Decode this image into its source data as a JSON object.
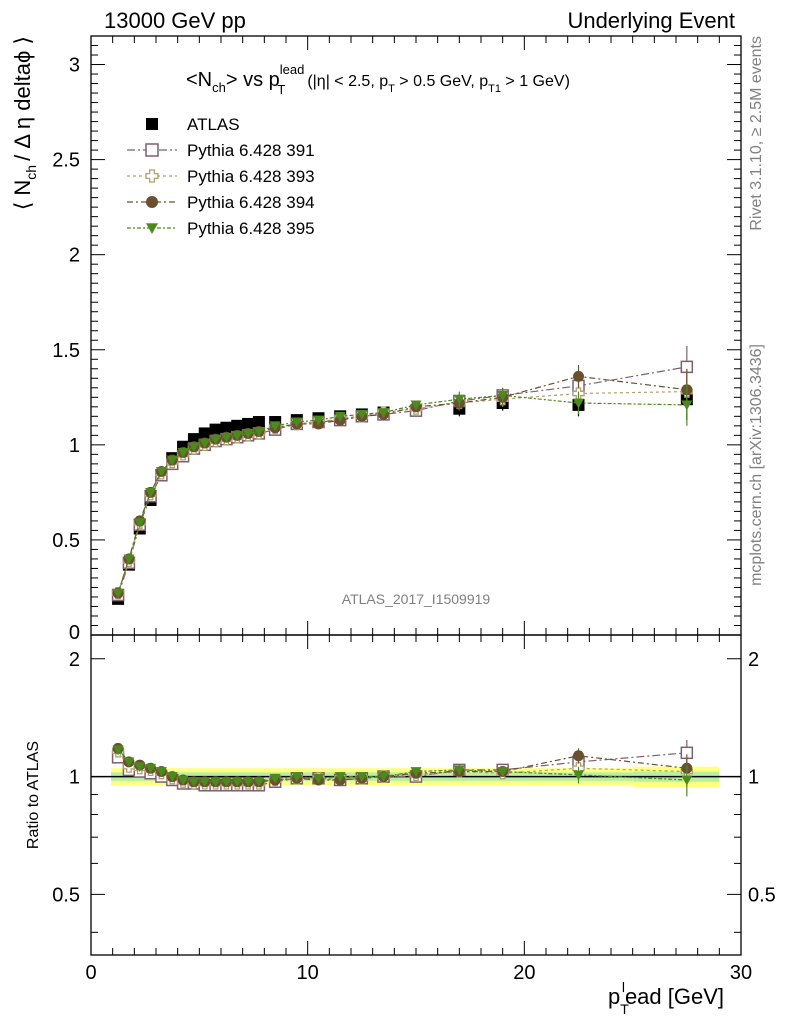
{
  "header": {
    "left": "13000 GeV pp",
    "right": "Underlying Event"
  },
  "side_labels": {
    "rivet": "Rivet 3.1.10, ≥ 2.5M events",
    "mcplots": "mcplots.cern.ch [arXiv:1306.3436]"
  },
  "analysis_id": "ATLAS_2017_I1509919",
  "plot_title": {
    "main_a": "<N",
    "main_sub": "ch",
    "main_b": "> vs p",
    "main_sup": "lead",
    "main_sub2": "T",
    "cuts": "(|η| < 2.5, p",
    "cuts_sub1": "T",
    "cuts_mid": " > 0.5 GeV, p",
    "cuts_sub2": "T1",
    "cuts_end": " > 1 GeV)"
  },
  "axes": {
    "ylabel_main": "⟨ N",
    "ylabel_sub": "ch",
    "ylabel_rest": "/ Δ η deltaϕ ⟩",
    "ylabel_ratio": "Ratio to ATLAS",
    "xlabel_a": "p",
    "xlabel_sub": "T",
    "xlabel_sup": "l",
    "xlabel_b": "ead [GeV]"
  },
  "legend": [
    {
      "label": "ATLAS",
      "marker": "filled-square",
      "color": "#000000"
    },
    {
      "label": "Pythia 6.428 391",
      "marker": "open-square",
      "color": "#7f5f6f"
    },
    {
      "label": "Pythia 6.428 393",
      "marker": "open-cross",
      "color": "#b0a070"
    },
    {
      "label": "Pythia 6.428 394",
      "marker": "filled-circle",
      "color": "#6b5030"
    },
    {
      "label": "Pythia 6.428 395",
      "marker": "filled-triangle-down",
      "color": "#4d8a1e"
    }
  ],
  "chart_data": {
    "type": "scatter",
    "xlim": [
      0,
      30
    ],
    "ylim_main": [
      0,
      3.15
    ],
    "ylim_ratio": [
      0.35,
      2.3
    ],
    "x_ticks": [
      "0",
      "10",
      "20",
      "30"
    ],
    "y_ticks_main": [
      "0.5",
      "1",
      "1.5",
      "2",
      "2.5",
      "3"
    ],
    "y_ticks_ratio": [
      "0.5",
      "1",
      "2"
    ],
    "x": [
      1.25,
      1.75,
      2.25,
      2.75,
      3.25,
      3.75,
      4.25,
      4.75,
      5.25,
      5.75,
      6.25,
      6.75,
      7.25,
      7.75,
      8.5,
      9.5,
      10.5,
      11.5,
      12.5,
      13.5,
      15.0,
      17.0,
      19.0,
      22.5,
      27.5
    ],
    "series": [
      {
        "name": "ATLAS",
        "values": [
          0.19,
          0.37,
          0.56,
          0.71,
          0.84,
          0.93,
          0.99,
          1.03,
          1.06,
          1.08,
          1.09,
          1.1,
          1.11,
          1.12,
          1.12,
          1.13,
          1.14,
          1.15,
          1.16,
          1.17,
          1.18,
          1.19,
          1.22,
          1.21,
          1.24
        ]
      },
      {
        "name": "Pythia 6.428 391",
        "values": [
          0.21,
          0.38,
          0.58,
          0.73,
          0.84,
          0.9,
          0.94,
          0.98,
          1.0,
          1.02,
          1.03,
          1.04,
          1.05,
          1.06,
          1.08,
          1.11,
          1.12,
          1.13,
          1.15,
          1.16,
          1.18,
          1.23,
          1.26,
          1.31,
          1.41
        ]
      },
      {
        "name": "Pythia 6.428 393",
        "values": [
          0.22,
          0.39,
          0.59,
          0.74,
          0.85,
          0.91,
          0.95,
          0.98,
          1.0,
          1.02,
          1.03,
          1.04,
          1.05,
          1.06,
          1.09,
          1.11,
          1.12,
          1.14,
          1.15,
          1.17,
          1.19,
          1.22,
          1.24,
          1.27,
          1.28
        ]
      },
      {
        "name": "Pythia 6.428 394",
        "values": [
          0.22,
          0.4,
          0.6,
          0.75,
          0.86,
          0.92,
          0.96,
          0.99,
          1.01,
          1.03,
          1.04,
          1.05,
          1.06,
          1.07,
          1.09,
          1.11,
          1.11,
          1.13,
          1.15,
          1.16,
          1.2,
          1.22,
          1.25,
          1.36,
          1.29
        ]
      },
      {
        "name": "Pythia 6.428 395",
        "values": [
          0.22,
          0.4,
          0.59,
          0.75,
          0.86,
          0.92,
          0.96,
          0.99,
          1.01,
          1.03,
          1.04,
          1.05,
          1.06,
          1.07,
          1.1,
          1.12,
          1.13,
          1.15,
          1.16,
          1.17,
          1.21,
          1.24,
          1.26,
          1.22,
          1.21
        ]
      }
    ],
    "ratio_series": [
      {
        "name": "Pythia 6.428 391",
        "values": [
          1.12,
          1.04,
          1.03,
          1.02,
          1.0,
          0.98,
          0.96,
          0.96,
          0.95,
          0.95,
          0.95,
          0.95,
          0.95,
          0.95,
          0.97,
          0.99,
          0.99,
          0.98,
          0.99,
          1.0,
          1.0,
          1.04,
          1.04,
          1.09,
          1.15
        ]
      },
      {
        "name": "Pythia 6.428 393",
        "values": [
          1.16,
          1.06,
          1.05,
          1.04,
          1.02,
          0.99,
          0.97,
          0.96,
          0.96,
          0.96,
          0.96,
          0.96,
          0.96,
          0.96,
          0.98,
          0.99,
          0.99,
          0.99,
          0.99,
          1.0,
          1.01,
          1.03,
          1.02,
          1.05,
          1.03
        ]
      },
      {
        "name": "Pythia 6.428 394",
        "values": [
          1.18,
          1.09,
          1.07,
          1.05,
          1.03,
          1.0,
          0.98,
          0.97,
          0.97,
          0.97,
          0.97,
          0.97,
          0.97,
          0.97,
          0.98,
          0.99,
          0.98,
          0.98,
          0.99,
          1.0,
          1.02,
          1.03,
          1.03,
          1.13,
          1.05
        ]
      },
      {
        "name": "Pythia 6.428 395",
        "values": [
          1.17,
          1.09,
          1.06,
          1.05,
          1.03,
          1.0,
          0.98,
          0.97,
          0.97,
          0.97,
          0.97,
          0.97,
          0.97,
          0.97,
          0.99,
          1.0,
          0.99,
          1.0,
          1.0,
          1.0,
          1.03,
          1.04,
          1.03,
          1.01,
          0.98
        ]
      }
    ]
  }
}
